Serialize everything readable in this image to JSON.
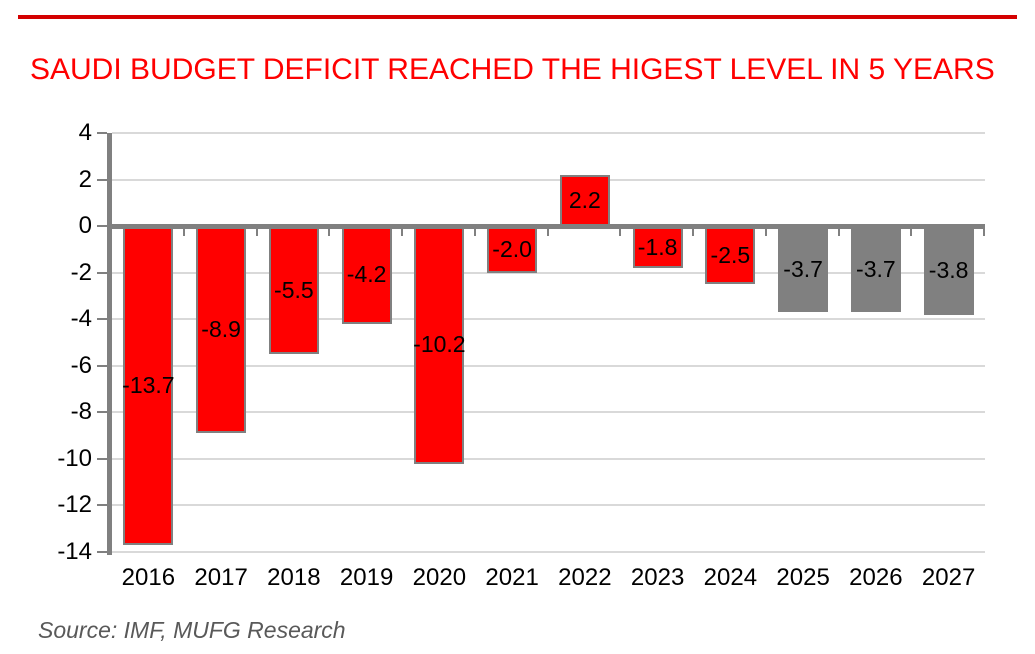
{
  "page": {
    "title": "SAUDI BUDGET DEFICIT REACHED THE HIGEST LEVEL IN 5 YEARS",
    "source_note": "Source: IMF, MUFG Research"
  },
  "chart_data": {
    "type": "bar",
    "title": "SAUDI BUDGET DEFICIT REACHED THE HIGEST LEVEL IN 5 YEARS",
    "categories": [
      "2016",
      "2017",
      "2018",
      "2019",
      "2020",
      "2021",
      "2022",
      "2023",
      "2024",
      "2025",
      "2026",
      "2027"
    ],
    "values": [
      -13.7,
      -8.9,
      -5.5,
      -4.2,
      -10.2,
      -2.0,
      2.2,
      -1.8,
      -2.5,
      -3.7,
      -3.7,
      -3.8
    ],
    "value_labels": [
      "-13.7",
      "-8.9",
      "-5.5",
      "-4.2",
      "-10.2",
      "-2.0",
      "2.2",
      "-1.8",
      "-2.5",
      "-3.7",
      "-3.7",
      "-3.8"
    ],
    "bar_colors": [
      "#ff0000",
      "#ff0000",
      "#ff0000",
      "#ff0000",
      "#ff0000",
      "#ff0000",
      "#ff0000",
      "#ff0000",
      "#ff0000",
      "#808080",
      "#808080",
      "#808080"
    ],
    "yticks": [
      4,
      2,
      0,
      -2,
      -4,
      -6,
      -8,
      -10,
      -12,
      -14
    ],
    "ytick_labels": [
      "4",
      "2",
      "0",
      "-2",
      "-4",
      "-6",
      "-8",
      "-10",
      "-12",
      "-14"
    ],
    "ylim": [
      -14,
      4
    ],
    "xlabel": "",
    "ylabel": "",
    "grid": "horizontal",
    "legend": "none",
    "source": "Source: IMF, MUFG Research",
    "colors": {
      "bar_red": "#ff0000",
      "bar_gray": "#808080",
      "bar_border": "#808080",
      "axis": "#808080",
      "gridline": "#d9d9d9",
      "data_label": "#000000",
      "tick_label": "#000000",
      "title": "#ff0000",
      "top_rule": "#d40000",
      "source_text": "#595959"
    }
  }
}
